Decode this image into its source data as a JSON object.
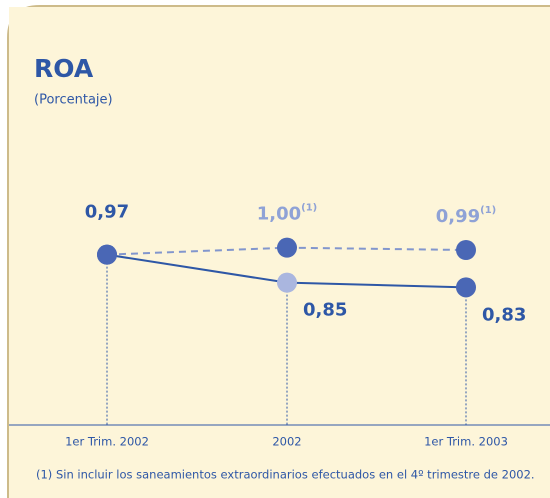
{
  "chart_data": {
    "type": "line",
    "title": "ROA",
    "subtitle": "(Porcentaje)",
    "categories": [
      "1er Trim. 2002",
      "2002",
      "1er Trim. 2003"
    ],
    "ylim": [
      0.6,
      1.2
    ],
    "series": [
      {
        "color": "#2e57a6",
        "dashed": false,
        "marker_colors": [
          "#4a67b5",
          "#aab6df",
          "#4a67b5"
        ],
        "values": [
          0.97,
          0.85,
          0.83
        ],
        "value_labels": [
          "0,97",
          "0,85",
          "0,83"
        ]
      },
      {
        "color": "#8296cd",
        "dashed": true,
        "marker_colors": [
          "#4a67b5",
          "#4a67b5",
          "#4a67b5"
        ],
        "values": [
          0.97,
          1.0,
          0.99
        ],
        "value_labels": [
          null,
          "1,00",
          "0,99"
        ],
        "label_note": "(1)"
      }
    ],
    "footnote": "(1)  Sin incluir los saneamientos extraordinarios efectuados en el 4º trimestre de 2002."
  }
}
